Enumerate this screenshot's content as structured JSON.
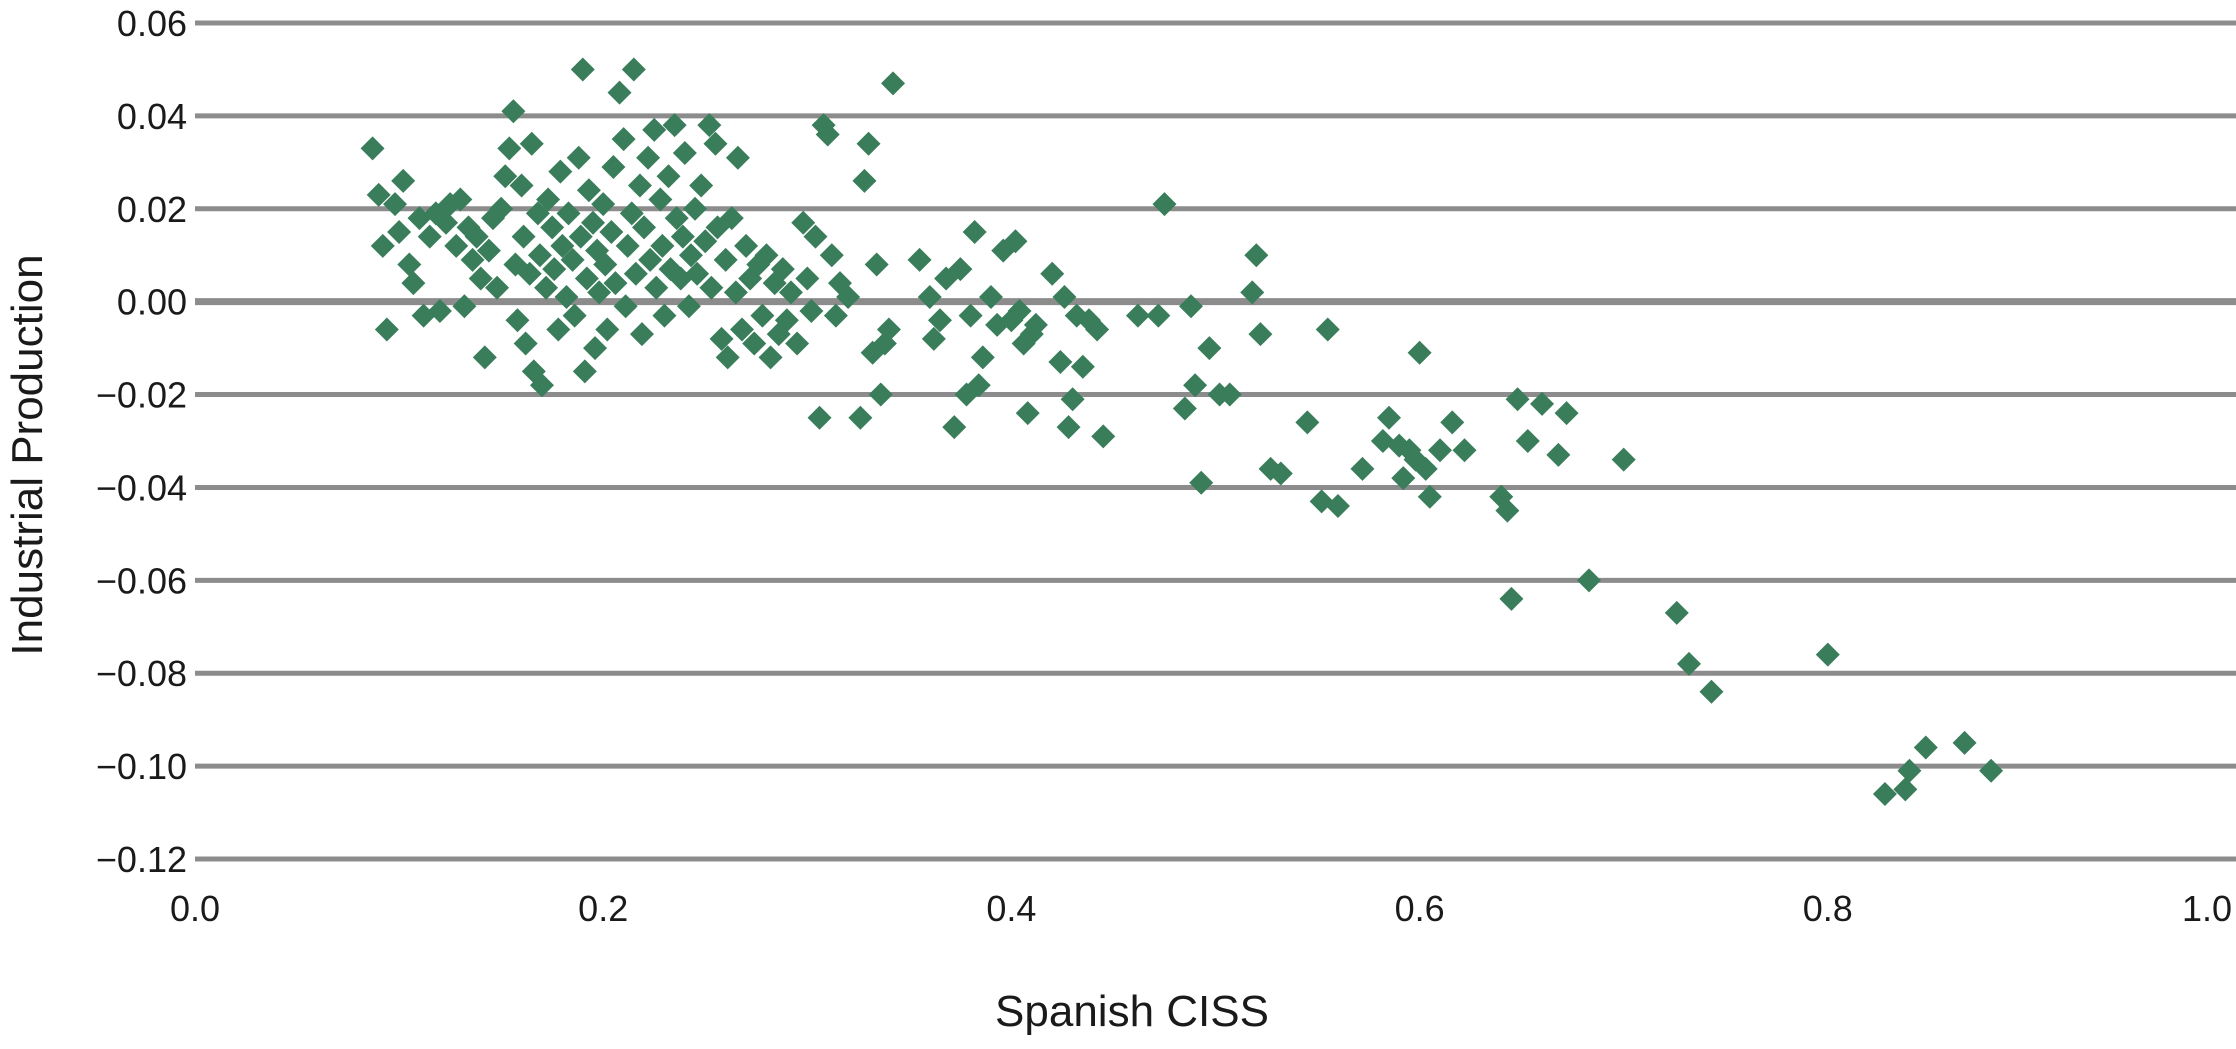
{
  "chart_data": {
    "type": "scatter",
    "title": "",
    "xlabel": "Spanish CISS",
    "ylabel": "Industrial Production",
    "xlim": [
      0.0,
      1.0
    ],
    "ylim": [
      -0.12,
      0.06
    ],
    "xticks": [
      0.0,
      0.2,
      0.4,
      0.6,
      0.8,
      1.0
    ],
    "xtick_labels": [
      "0.0",
      "0.2",
      "0.4",
      "0.6",
      "0.8",
      "1.0"
    ],
    "yticks": [
      0.06,
      0.04,
      0.02,
      0.0,
      -0.02,
      -0.04,
      -0.06,
      -0.08,
      -0.1,
      -0.12
    ],
    "ytick_labels": [
      "0.06",
      "0.04",
      "0.02",
      "0.00",
      "−0.02",
      "−0.04",
      "−0.06",
      "−0.08",
      "−0.10",
      "−0.12"
    ],
    "grid": "horizontal",
    "legend": "none",
    "marker": "diamond",
    "color": "#3a7d5a",
    "points": [
      [
        0.087,
        0.033
      ],
      [
        0.09,
        0.023
      ],
      [
        0.092,
        0.012
      ],
      [
        0.094,
        -0.006
      ],
      [
        0.098,
        0.021
      ],
      [
        0.1,
        0.015
      ],
      [
        0.102,
        0.026
      ],
      [
        0.105,
        0.008
      ],
      [
        0.107,
        0.004
      ],
      [
        0.11,
        0.018
      ],
      [
        0.112,
        -0.003
      ],
      [
        0.115,
        0.014
      ],
      [
        0.118,
        0.019
      ],
      [
        0.12,
        -0.002
      ],
      [
        0.123,
        0.017
      ],
      [
        0.125,
        0.021
      ],
      [
        0.128,
        0.012
      ],
      [
        0.13,
        0.022
      ],
      [
        0.132,
        -0.001
      ],
      [
        0.134,
        0.016
      ],
      [
        0.136,
        0.009
      ],
      [
        0.138,
        0.014
      ],
      [
        0.14,
        0.005
      ],
      [
        0.142,
        -0.012
      ],
      [
        0.144,
        0.011
      ],
      [
        0.146,
        0.018
      ],
      [
        0.148,
        0.003
      ],
      [
        0.15,
        0.02
      ],
      [
        0.152,
        0.027
      ],
      [
        0.154,
        0.033
      ],
      [
        0.156,
        0.041
      ],
      [
        0.157,
        0.008
      ],
      [
        0.158,
        -0.004
      ],
      [
        0.16,
        0.025
      ],
      [
        0.161,
        0.014
      ],
      [
        0.162,
        -0.009
      ],
      [
        0.164,
        0.006
      ],
      [
        0.165,
        0.034
      ],
      [
        0.166,
        -0.015
      ],
      [
        0.168,
        0.019
      ],
      [
        0.169,
        0.01
      ],
      [
        0.17,
        -0.018
      ],
      [
        0.172,
        0.003
      ],
      [
        0.173,
        0.022
      ],
      [
        0.175,
        0.016
      ],
      [
        0.176,
        0.007
      ],
      [
        0.178,
        -0.006
      ],
      [
        0.179,
        0.028
      ],
      [
        0.18,
        0.012
      ],
      [
        0.182,
        0.001
      ],
      [
        0.183,
        0.019
      ],
      [
        0.185,
        0.009
      ],
      [
        0.186,
        -0.003
      ],
      [
        0.188,
        0.031
      ],
      [
        0.189,
        0.014
      ],
      [
        0.19,
        0.05
      ],
      [
        0.191,
        -0.015
      ],
      [
        0.192,
        0.005
      ],
      [
        0.193,
        0.024
      ],
      [
        0.195,
        0.017
      ],
      [
        0.196,
        -0.01
      ],
      [
        0.197,
        0.011
      ],
      [
        0.198,
        0.002
      ],
      [
        0.2,
        0.021
      ],
      [
        0.201,
        0.008
      ],
      [
        0.202,
        -0.006
      ],
      [
        0.204,
        0.015
      ],
      [
        0.205,
        0.029
      ],
      [
        0.206,
        0.004
      ],
      [
        0.208,
        0.045
      ],
      [
        0.21,
        0.035
      ],
      [
        0.211,
        -0.001
      ],
      [
        0.212,
        0.012
      ],
      [
        0.214,
        0.019
      ],
      [
        0.215,
        0.05
      ],
      [
        0.216,
        0.006
      ],
      [
        0.218,
        0.025
      ],
      [
        0.219,
        -0.007
      ],
      [
        0.22,
        0.016
      ],
      [
        0.222,
        0.031
      ],
      [
        0.223,
        0.009
      ],
      [
        0.225,
        0.037
      ],
      [
        0.226,
        0.003
      ],
      [
        0.228,
        0.022
      ],
      [
        0.229,
        0.012
      ],
      [
        0.23,
        -0.003
      ],
      [
        0.232,
        0.027
      ],
      [
        0.233,
        0.007
      ],
      [
        0.235,
        0.038
      ],
      [
        0.236,
        0.018
      ],
      [
        0.238,
        0.005
      ],
      [
        0.239,
        0.014
      ],
      [
        0.24,
        0.032
      ],
      [
        0.242,
        -0.001
      ],
      [
        0.243,
        0.01
      ],
      [
        0.245,
        0.02
      ],
      [
        0.246,
        0.006
      ],
      [
        0.248,
        0.025
      ],
      [
        0.25,
        0.013
      ],
      [
        0.252,
        0.038
      ],
      [
        0.253,
        0.003
      ],
      [
        0.255,
        0.034
      ],
      [
        0.256,
        0.016
      ],
      [
        0.258,
        -0.008
      ],
      [
        0.26,
        0.009
      ],
      [
        0.261,
        -0.012
      ],
      [
        0.263,
        0.018
      ],
      [
        0.265,
        0.002
      ],
      [
        0.266,
        0.031
      ],
      [
        0.268,
        -0.006
      ],
      [
        0.27,
        0.012
      ],
      [
        0.272,
        0.005
      ],
      [
        0.274,
        -0.009
      ],
      [
        0.276,
        0.008
      ],
      [
        0.278,
        -0.003
      ],
      [
        0.28,
        0.01
      ],
      [
        0.282,
        -0.012
      ],
      [
        0.284,
        0.004
      ],
      [
        0.286,
        -0.007
      ],
      [
        0.288,
        0.007
      ],
      [
        0.29,
        -0.004
      ],
      [
        0.292,
        0.002
      ],
      [
        0.295,
        -0.009
      ],
      [
        0.298,
        0.017
      ],
      [
        0.3,
        0.005
      ],
      [
        0.302,
        -0.002
      ],
      [
        0.304,
        0.014
      ],
      [
        0.306,
        -0.025
      ],
      [
        0.308,
        0.038
      ],
      [
        0.31,
        0.036
      ],
      [
        0.312,
        0.01
      ],
      [
        0.314,
        -0.003
      ],
      [
        0.316,
        0.004
      ],
      [
        0.32,
        0.001
      ],
      [
        0.326,
        -0.025
      ],
      [
        0.328,
        0.026
      ],
      [
        0.33,
        0.034
      ],
      [
        0.332,
        -0.011
      ],
      [
        0.334,
        0.008
      ],
      [
        0.336,
        -0.02
      ],
      [
        0.338,
        -0.009
      ],
      [
        0.34,
        -0.006
      ],
      [
        0.342,
        0.047
      ],
      [
        0.355,
        0.009
      ],
      [
        0.36,
        0.001
      ],
      [
        0.362,
        -0.008
      ],
      [
        0.365,
        -0.004
      ],
      [
        0.368,
        0.005
      ],
      [
        0.372,
        -0.027
      ],
      [
        0.375,
        0.007
      ],
      [
        0.378,
        -0.02
      ],
      [
        0.38,
        -0.003
      ],
      [
        0.382,
        0.015
      ],
      [
        0.384,
        -0.018
      ],
      [
        0.386,
        -0.012
      ],
      [
        0.39,
        0.001
      ],
      [
        0.393,
        -0.005
      ],
      [
        0.396,
        0.011
      ],
      [
        0.4,
        -0.004
      ],
      [
        0.402,
        0.013
      ],
      [
        0.404,
        -0.002
      ],
      [
        0.406,
        -0.009
      ],
      [
        0.408,
        -0.024
      ],
      [
        0.41,
        -0.007
      ],
      [
        0.412,
        -0.005
      ],
      [
        0.42,
        0.006
      ],
      [
        0.424,
        -0.013
      ],
      [
        0.426,
        0.001
      ],
      [
        0.428,
        -0.027
      ],
      [
        0.43,
        -0.021
      ],
      [
        0.432,
        -0.003
      ],
      [
        0.435,
        -0.014
      ],
      [
        0.438,
        -0.004
      ],
      [
        0.442,
        -0.006
      ],
      [
        0.445,
        -0.029
      ],
      [
        0.462,
        -0.003
      ],
      [
        0.472,
        -0.003
      ],
      [
        0.475,
        0.021
      ],
      [
        0.485,
        -0.023
      ],
      [
        0.488,
        -0.001
      ],
      [
        0.49,
        -0.018
      ],
      [
        0.493,
        -0.039
      ],
      [
        0.497,
        -0.01
      ],
      [
        0.502,
        -0.02
      ],
      [
        0.507,
        -0.02
      ],
      [
        0.518,
        0.002
      ],
      [
        0.52,
        0.01
      ],
      [
        0.522,
        -0.007
      ],
      [
        0.527,
        -0.036
      ],
      [
        0.532,
        -0.037
      ],
      [
        0.545,
        -0.026
      ],
      [
        0.552,
        -0.043
      ],
      [
        0.555,
        -0.006
      ],
      [
        0.56,
        -0.044
      ],
      [
        0.572,
        -0.036
      ],
      [
        0.582,
        -0.03
      ],
      [
        0.585,
        -0.025
      ],
      [
        0.59,
        -0.031
      ],
      [
        0.592,
        -0.038
      ],
      [
        0.595,
        -0.032
      ],
      [
        0.598,
        -0.034
      ],
      [
        0.6,
        -0.011
      ],
      [
        0.603,
        -0.036
      ],
      [
        0.605,
        -0.042
      ],
      [
        0.61,
        -0.032
      ],
      [
        0.616,
        -0.026
      ],
      [
        0.622,
        -0.032
      ],
      [
        0.64,
        -0.042
      ],
      [
        0.643,
        -0.045
      ],
      [
        0.645,
        -0.064
      ],
      [
        0.648,
        -0.021
      ],
      [
        0.653,
        -0.03
      ],
      [
        0.66,
        -0.022
      ],
      [
        0.668,
        -0.033
      ],
      [
        0.672,
        -0.024
      ],
      [
        0.683,
        -0.06
      ],
      [
        0.7,
        -0.034
      ],
      [
        0.726,
        -0.067
      ],
      [
        0.732,
        -0.078
      ],
      [
        0.743,
        -0.084
      ],
      [
        0.8,
        -0.076
      ],
      [
        0.828,
        -0.106
      ],
      [
        0.838,
        -0.105
      ],
      [
        0.84,
        -0.101
      ],
      [
        0.848,
        -0.096
      ],
      [
        0.867,
        -0.095
      ],
      [
        0.88,
        -0.101
      ]
    ]
  }
}
